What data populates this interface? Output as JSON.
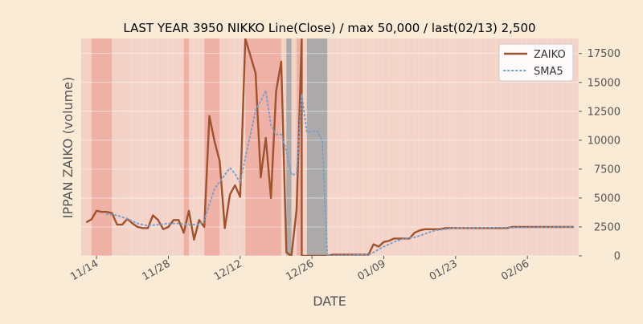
{
  "chart_data": {
    "type": "line",
    "title": "LAST YEAR 3950 NIKKO Line(Close) / max 50,000 / last(02/13) 2,500",
    "xlabel": "DATE",
    "ylabel": "IPPAN ZAIKO (volume)",
    "ylim": [
      0,
      18800
    ],
    "yticks": [
      0,
      2500,
      5000,
      7500,
      10000,
      12500,
      15000,
      17500
    ],
    "ytick_labels": [
      "0",
      "2500",
      "5000",
      "7500",
      "10000",
      "12500",
      "15000",
      "17500"
    ],
    "xlim": [
      "2021-11-11",
      "2022-02-16"
    ],
    "xticks": [
      "2021-11-14",
      "2021-11-28",
      "2021-12-12",
      "2021-12-26",
      "2022-01-09",
      "2022-01-23",
      "2022-02-06"
    ],
    "xtick_labels": [
      "11/14",
      "11/28",
      "12/12",
      "12/26",
      "01/09",
      "01/23",
      "02/06"
    ],
    "legend": {
      "placement": "top-right",
      "entries": [
        "ZAIKO",
        "SMA5"
      ]
    },
    "grid": true,
    "colors": {
      "background": "#faebd7",
      "plot_background": "#f5d9cf",
      "zaiko": "#a0522d",
      "sma5": "#7ba0c8",
      "band_light": "#f3cfc4",
      "band_dark": "#eea89c",
      "band_gray": "#a8a8a8"
    },
    "series": [
      {
        "name": "ZAIKO",
        "style": "solid",
        "points": [
          [
            "2021-11-12",
            2900
          ],
          [
            "2021-11-13",
            3150
          ],
          [
            "2021-11-14",
            3900
          ],
          [
            "2021-11-15",
            3800
          ],
          [
            "2021-11-16",
            3800
          ],
          [
            "2021-11-17",
            3700
          ],
          [
            "2021-11-18",
            2700
          ],
          [
            "2021-11-19",
            2700
          ],
          [
            "2021-11-20",
            3200
          ],
          [
            "2021-11-21",
            2800
          ],
          [
            "2021-11-22",
            2500
          ],
          [
            "2021-11-23",
            2400
          ],
          [
            "2021-11-24",
            2400
          ],
          [
            "2021-11-25",
            3500
          ],
          [
            "2021-11-26",
            3100
          ],
          [
            "2021-11-27",
            2300
          ],
          [
            "2021-11-28",
            2500
          ],
          [
            "2021-11-29",
            3100
          ],
          [
            "2021-11-30",
            3100
          ],
          [
            "2021-12-01",
            2000
          ],
          [
            "2021-12-02",
            3900
          ],
          [
            "2021-12-03",
            1400
          ],
          [
            "2021-12-04",
            3100
          ],
          [
            "2021-12-05",
            2500
          ],
          [
            "2021-12-06",
            12100
          ],
          [
            "2021-12-07",
            9900
          ],
          [
            "2021-12-08",
            8200
          ],
          [
            "2021-12-09",
            2400
          ],
          [
            "2021-12-10",
            5300
          ],
          [
            "2021-12-11",
            6100
          ],
          [
            "2021-12-12",
            5100
          ],
          [
            "2021-12-13",
            18800
          ],
          [
            "2021-12-15",
            15800
          ],
          [
            "2021-12-16",
            6800
          ],
          [
            "2021-12-17",
            10200
          ],
          [
            "2021-12-18",
            5000
          ],
          [
            "2021-12-19",
            14200
          ],
          [
            "2021-12-20",
            16800
          ],
          [
            "2021-12-21",
            300
          ],
          [
            "2021-12-22",
            0
          ],
          [
            "2021-12-23",
            4000
          ],
          [
            "2021-12-24",
            18800
          ],
          [
            "2021-12-24",
            0
          ],
          [
            "2021-12-29",
            0
          ],
          [
            "2021-12-30",
            100
          ],
          [
            "2022-01-06",
            100
          ],
          [
            "2022-01-07",
            1000
          ],
          [
            "2022-01-08",
            800
          ],
          [
            "2022-01-09",
            1200
          ],
          [
            "2022-01-10",
            1300
          ],
          [
            "2022-01-11",
            1500
          ],
          [
            "2022-01-12",
            1500
          ],
          [
            "2022-01-13",
            1500
          ],
          [
            "2022-01-14",
            1500
          ],
          [
            "2022-01-15",
            2000
          ],
          [
            "2022-01-16",
            2200
          ],
          [
            "2022-01-17",
            2300
          ],
          [
            "2022-01-20",
            2300
          ],
          [
            "2022-01-21",
            2400
          ],
          [
            "2022-02-02",
            2400
          ],
          [
            "2022-02-03",
            2500
          ],
          [
            "2022-02-15",
            2500
          ]
        ]
      },
      {
        "name": "SMA5",
        "style": "dotted",
        "points": [
          [
            "2021-11-16",
            3600
          ],
          [
            "2021-11-18",
            3500
          ],
          [
            "2021-11-20",
            3200
          ],
          [
            "2021-11-22",
            2800
          ],
          [
            "2021-11-24",
            2600
          ],
          [
            "2021-11-26",
            2700
          ],
          [
            "2021-11-28",
            2800
          ],
          [
            "2021-11-30",
            2800
          ],
          [
            "2021-12-02",
            2700
          ],
          [
            "2021-12-04",
            2700
          ],
          [
            "2021-12-05",
            3100
          ],
          [
            "2021-12-07",
            5800
          ],
          [
            "2021-12-09",
            7000
          ],
          [
            "2021-12-10",
            7600
          ],
          [
            "2021-12-11",
            7100
          ],
          [
            "2021-12-12",
            6300
          ],
          [
            "2021-12-13",
            8500
          ],
          [
            "2021-12-14",
            10500
          ],
          [
            "2021-12-15",
            12600
          ],
          [
            "2021-12-16",
            13400
          ],
          [
            "2021-12-17",
            14300
          ],
          [
            "2021-12-18",
            11300
          ],
          [
            "2021-12-19",
            10500
          ],
          [
            "2021-12-20",
            10500
          ],
          [
            "2021-12-21",
            9100
          ],
          [
            "2021-12-22",
            7000
          ],
          [
            "2021-12-23",
            7100
          ],
          [
            "2021-12-24",
            14000
          ],
          [
            "2021-12-25",
            10700
          ],
          [
            "2021-12-27",
            10800
          ],
          [
            "2021-12-28",
            10000
          ],
          [
            "2021-12-29",
            0
          ],
          [
            "2022-01-06",
            100
          ],
          [
            "2022-01-07",
            300
          ],
          [
            "2022-01-09",
            800
          ],
          [
            "2022-01-11",
            1200
          ],
          [
            "2022-01-13",
            1500
          ],
          [
            "2022-01-15",
            1600
          ],
          [
            "2022-01-17",
            1900
          ],
          [
            "2022-01-19",
            2200
          ],
          [
            "2022-01-21",
            2300
          ],
          [
            "2022-01-23",
            2400
          ],
          [
            "2022-02-15",
            2500
          ]
        ]
      }
    ],
    "shaded_bands": [
      {
        "start": "2021-11-11",
        "end": "2021-11-13",
        "shade": "light"
      },
      {
        "start": "2021-11-13",
        "end": "2021-11-17",
        "shade": "dark"
      },
      {
        "start": "2021-11-17",
        "end": "2021-11-20",
        "shade": "light"
      },
      {
        "start": "2021-12-01",
        "end": "2021-12-02",
        "shade": "dark"
      },
      {
        "start": "2021-12-05",
        "end": "2021-12-08",
        "shade": "dark"
      },
      {
        "start": "2021-12-08",
        "end": "2021-12-10",
        "shade": "light"
      },
      {
        "start": "2021-12-13",
        "end": "2021-12-16",
        "shade": "dark"
      },
      {
        "start": "2021-12-16",
        "end": "2021-12-20",
        "shade": "dark"
      },
      {
        "start": "2021-12-20",
        "end": "2021-12-21",
        "shade": "light"
      },
      {
        "start": "2021-12-21",
        "end": "2021-12-22",
        "shade": "gray"
      },
      {
        "start": "2021-12-22",
        "end": "2021-12-23",
        "shade": "light"
      },
      {
        "start": "2021-12-23",
        "end": "2021-12-24",
        "shade": "dark"
      },
      {
        "start": "2021-12-25",
        "end": "2021-12-29",
        "shade": "gray"
      }
    ]
  }
}
